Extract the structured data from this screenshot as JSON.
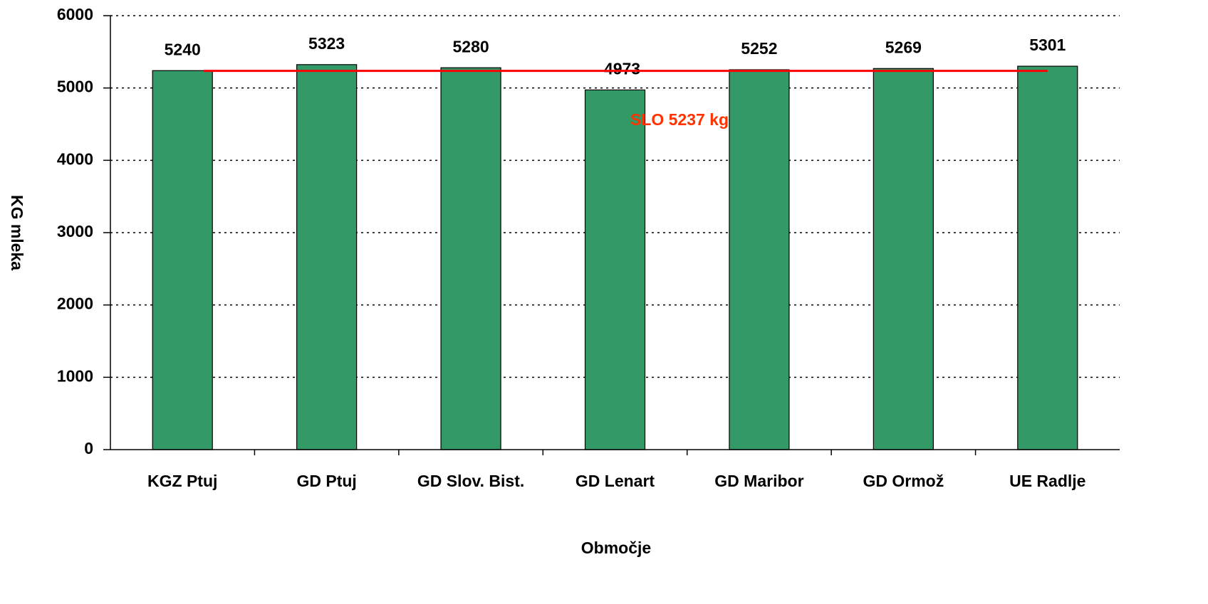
{
  "chart_data": {
    "type": "bar",
    "categories": [
      "KGZ Ptuj",
      "GD Ptuj",
      "GD Slov. Bist.",
      "GD Lenart",
      "GD Maribor",
      "GD Ormož",
      "UE Radlje"
    ],
    "values": [
      5240,
      5323,
      5280,
      4973,
      5252,
      5269,
      5301
    ],
    "color": "#339966",
    "ylim": [
      0,
      6000
    ],
    "yticks": [
      0,
      1000,
      2000,
      3000,
      4000,
      5000,
      6000
    ],
    "grid": true,
    "x_label": "Območje",
    "y_label": "KG mleka",
    "reference_line": {
      "value": 5237,
      "label": "SLO 5237 kg",
      "color": "#ff0000",
      "label_color": "#ff3300"
    }
  }
}
